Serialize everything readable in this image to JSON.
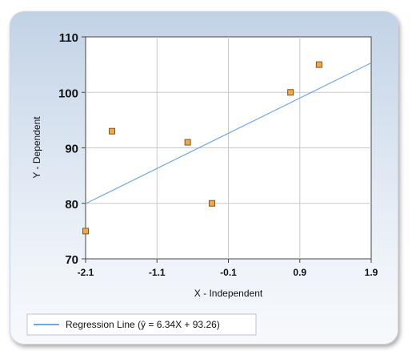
{
  "chart_data": {
    "type": "scatter",
    "title": "",
    "xlabel": "X - Independent",
    "ylabel": "Y - Dependent",
    "xlim": [
      -2.1,
      1.9
    ],
    "ylim": [
      70,
      110
    ],
    "x_ticks": [
      "-2.1",
      "-1.1",
      "-0.1",
      "0.9",
      "1.9"
    ],
    "y_ticks": [
      "70",
      "80",
      "90",
      "100",
      "110"
    ],
    "grid": true,
    "series": [
      {
        "points": [
          {
            "x": -2.1,
            "y": 75
          },
          {
            "x": -1.73,
            "y": 93
          },
          {
            "x": -0.67,
            "y": 91
          },
          {
            "x": -0.33,
            "y": 80
          },
          {
            "x": 0.77,
            "y": 100
          },
          {
            "x": 1.17,
            "y": 105
          }
        ],
        "marker_color": "#f0a848",
        "marker_edge": "#7a5522"
      }
    ],
    "regression": {
      "name": "Regression Line (ŷ = 6.34X + 93.26)",
      "slope": 6.34,
      "intercept": 93.26,
      "color": "#6fa8e6"
    },
    "legend_position": "bottom-left"
  }
}
